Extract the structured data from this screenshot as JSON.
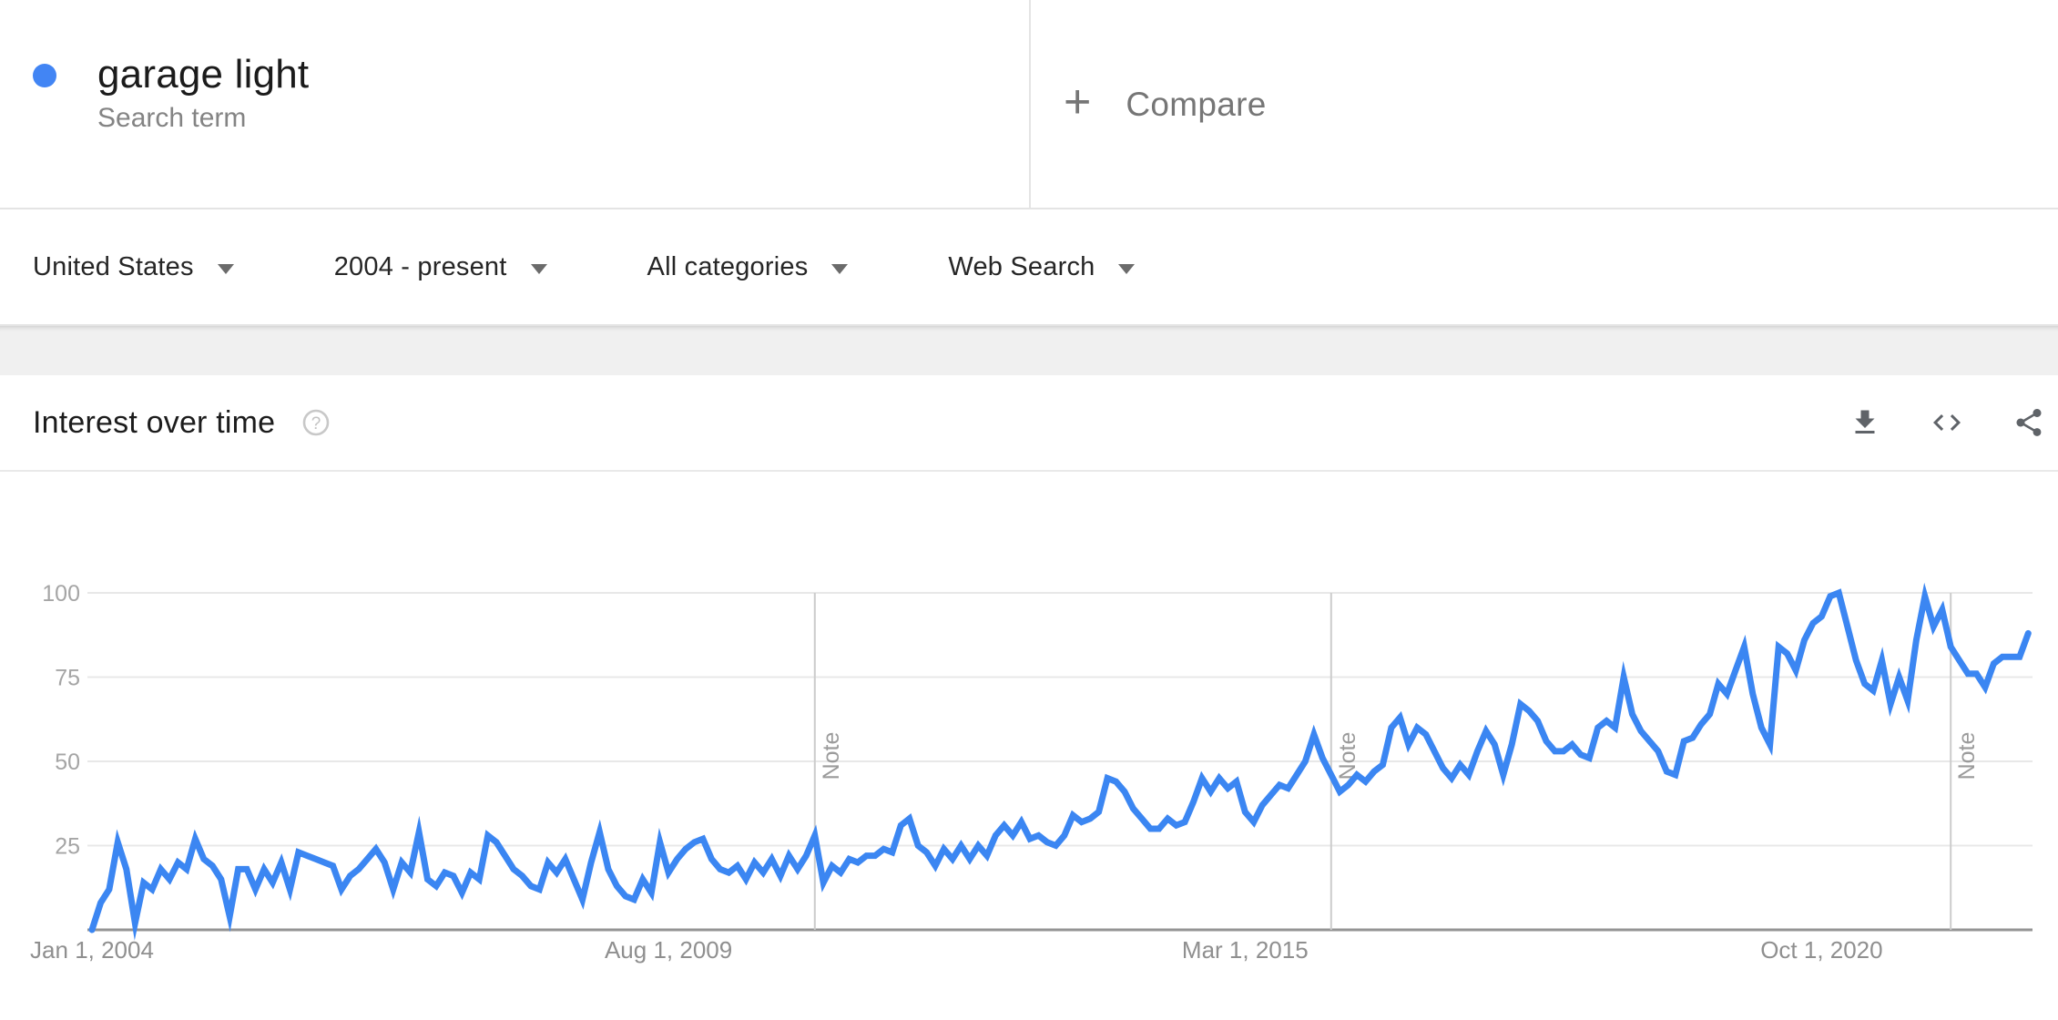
{
  "term_card": {
    "term": "garage light",
    "subtitle": "Search term",
    "dot_color": "#4285f4"
  },
  "compare": {
    "plus": "+",
    "label": "Compare"
  },
  "filters": [
    {
      "label": "United States"
    },
    {
      "label": "2004 - present"
    },
    {
      "label": "All categories"
    },
    {
      "label": "Web Search"
    }
  ],
  "widget_header": {
    "title": "Interest over time",
    "help_glyph": "?",
    "actions": [
      {
        "icon": "download-icon"
      },
      {
        "icon": "embed-icon"
      },
      {
        "icon": "share-icon"
      }
    ]
  },
  "chart_data": {
    "type": "line",
    "title": "Interest over time",
    "series_name": "garage light",
    "line_color": "#3b86f2",
    "grid": true,
    "legend_position": "none",
    "ylim": [
      0,
      100
    ],
    "yticks": [
      25,
      50,
      75,
      100
    ],
    "x_start": "2004-01",
    "x_freq": "monthly",
    "xticks": [
      {
        "month_index": 0,
        "label": "Jan 1, 2004"
      },
      {
        "month_index": 67,
        "label": "Aug 1, 2009"
      },
      {
        "month_index": 134,
        "label": "Mar 1, 2015"
      },
      {
        "month_index": 201,
        "label": "Oct 1, 2020"
      }
    ],
    "notes": [
      {
        "month_index": 84,
        "label": "Note"
      },
      {
        "month_index": 144,
        "label": "Note"
      },
      {
        "month_index": 216,
        "label": "Note"
      }
    ],
    "values": [
      0,
      8,
      12,
      26,
      18,
      2,
      14,
      12,
      18,
      15,
      20,
      18,
      27,
      21,
      19,
      15,
      4,
      18,
      18,
      12,
      18,
      14,
      20,
      12,
      23,
      22,
      21,
      20,
      19,
      12,
      16,
      18,
      21,
      24,
      20,
      12,
      20,
      17,
      29,
      15,
      13,
      17,
      16,
      11,
      17,
      15,
      28,
      26,
      22,
      18,
      16,
      13,
      12,
      20,
      17,
      21,
      15,
      9,
      20,
      29,
      18,
      13,
      10,
      9,
      15,
      11,
      26,
      17,
      21,
      24,
      26,
      27,
      21,
      18,
      17,
      19,
      15,
      20,
      17,
      21,
      16,
      22,
      18,
      22,
      28,
      14,
      19,
      17,
      21,
      20,
      22,
      22,
      24,
      23,
      31,
      33,
      25,
      23,
      19,
      24,
      21,
      25,
      21,
      25,
      22,
      28,
      31,
      28,
      32,
      27,
      28,
      26,
      25,
      28,
      34,
      32,
      33,
      35,
      45,
      44,
      41,
      36,
      33,
      30,
      30,
      33,
      31,
      32,
      38,
      45,
      41,
      45,
      42,
      44,
      35,
      32,
      37,
      40,
      43,
      42,
      46,
      50,
      58,
      51,
      46,
      41,
      43,
      46,
      44,
      47,
      49,
      60,
      63,
      55,
      60,
      58,
      53,
      48,
      45,
      49,
      46,
      53,
      59,
      55,
      46,
      55,
      67,
      65,
      62,
      56,
      53,
      53,
      55,
      52,
      51,
      60,
      62,
      60,
      75,
      64,
      59,
      56,
      53,
      47,
      46,
      56,
      57,
      61,
      64,
      73,
      70,
      77,
      84,
      70,
      60,
      55,
      84,
      82,
      77,
      86,
      91,
      93,
      99,
      100,
      90,
      80,
      73,
      71,
      80,
      67,
      75,
      68,
      86,
      99,
      90,
      95,
      84,
      80,
      76,
      76,
      72,
      79,
      81,
      81,
      81,
      88
    ]
  }
}
